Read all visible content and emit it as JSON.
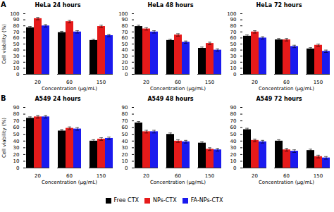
{
  "chart_data": [
    {
      "type": "bar",
      "title": "HeLa 24 hours",
      "annotation": "A",
      "xlabel": "Concentration (μg/mL)",
      "ylabel": "Cell viability (%)",
      "categories": [
        "20",
        "60",
        "150"
      ],
      "series": [
        {
          "name": "Free CTX",
          "color": "#000000",
          "values": [
            77,
            69,
            56
          ],
          "errors": [
            2,
            2,
            2
          ]
        },
        {
          "name": "NPs-CTX",
          "color": "#e61a1a",
          "values": [
            92,
            87,
            79
          ],
          "errors": [
            2,
            2,
            2
          ]
        },
        {
          "name": "FA-NPs-CTX",
          "color": "#1a1aee",
          "values": [
            80,
            70,
            64
          ],
          "errors": [
            2,
            2,
            2
          ]
        }
      ],
      "ylim": [
        0,
        100
      ],
      "yticks": [
        0,
        10,
        20,
        30,
        40,
        50,
        60,
        70,
        80,
        90,
        100
      ],
      "legend": "bottom"
    },
    {
      "type": "bar",
      "title": "HeLa 48 hours",
      "xlabel": "Concentration (μg/mL)",
      "categories": [
        "20",
        "60",
        "150"
      ],
      "series": [
        {
          "name": "Free CTX",
          "color": "#000000",
          "values": [
            79,
            56,
            43
          ],
          "errors": [
            2,
            2,
            2
          ]
        },
        {
          "name": "NPs-CTX",
          "color": "#e61a1a",
          "values": [
            75,
            65,
            51
          ],
          "errors": [
            2,
            2,
            2
          ]
        },
        {
          "name": "FA-NPs-CTX",
          "color": "#1a1aee",
          "values": [
            70,
            53,
            40
          ],
          "errors": [
            2,
            2,
            2
          ]
        }
      ],
      "ylim": [
        0,
        100
      ],
      "yticks": [
        0,
        10,
        20,
        30,
        40,
        50,
        60,
        70,
        80,
        90,
        100
      ],
      "legend": "bottom"
    },
    {
      "type": "bar",
      "title": "HeLa 72 hours",
      "xlabel": "Concentration (μg/mL)",
      "categories": [
        "20",
        "60",
        "150"
      ],
      "series": [
        {
          "name": "Free CTX",
          "color": "#000000",
          "values": [
            63,
            57,
            42
          ],
          "errors": [
            2,
            2,
            2
          ]
        },
        {
          "name": "NPs-CTX",
          "color": "#e61a1a",
          "values": [
            70,
            57,
            48
          ],
          "errors": [
            2,
            2,
            2
          ]
        },
        {
          "name": "FA-NPs-CTX",
          "color": "#1a1aee",
          "values": [
            60,
            46,
            38
          ],
          "errors": [
            2,
            2,
            2
          ]
        }
      ],
      "ylim": [
        0,
        100
      ],
      "yticks": [
        0,
        10,
        20,
        30,
        40,
        50,
        60,
        70,
        80,
        90,
        100
      ],
      "legend": "bottom"
    },
    {
      "type": "bar",
      "title": "A549 24 hours",
      "annotation": "B",
      "xlabel": "Concentration (μg/mL)",
      "ylabel": "Cell viability (%)",
      "categories": [
        "20",
        "60",
        "150"
      ],
      "series": [
        {
          "name": "Free CTX",
          "color": "#000000",
          "values": [
            74,
            55,
            40
          ],
          "errors": [
            2,
            2,
            2
          ]
        },
        {
          "name": "NPs-CTX",
          "color": "#e61a1a",
          "values": [
            76,
            59,
            43
          ],
          "errors": [
            2,
            2,
            2
          ]
        },
        {
          "name": "FA-NPs-CTX",
          "color": "#1a1aee",
          "values": [
            76,
            58,
            44
          ],
          "errors": [
            2,
            2,
            2
          ]
        }
      ],
      "ylim": [
        0,
        90
      ],
      "yticks": [
        0,
        10,
        20,
        30,
        40,
        50,
        60,
        70,
        80,
        90
      ],
      "legend": "bottom"
    },
    {
      "type": "bar",
      "title": "A549 48 hours",
      "xlabel": "Concentration (μg/mL)",
      "categories": [
        "20",
        "60",
        "150"
      ],
      "series": [
        {
          "name": "Free CTX",
          "color": "#000000",
          "values": [
            67,
            50,
            37
          ],
          "errors": [
            2,
            2,
            2
          ]
        },
        {
          "name": "NPs-CTX",
          "color": "#e61a1a",
          "values": [
            54,
            40,
            28
          ],
          "errors": [
            2,
            2,
            2
          ]
        },
        {
          "name": "FA-NPs-CTX",
          "color": "#1a1aee",
          "values": [
            54,
            39,
            27
          ],
          "errors": [
            2,
            2,
            2
          ]
        }
      ],
      "ylim": [
        0,
        90
      ],
      "yticks": [
        0,
        10,
        20,
        30,
        40,
        50,
        60,
        70,
        80,
        90
      ],
      "legend": "bottom"
    },
    {
      "type": "bar",
      "title": "A549 72 hours",
      "xlabel": "Concentration (μg/mL)",
      "categories": [
        "20",
        "60",
        "150"
      ],
      "series": [
        {
          "name": "Free CTX",
          "color": "#000000",
          "values": [
            57,
            40,
            26
          ],
          "errors": [
            2,
            2,
            2
          ]
        },
        {
          "name": "NPs-CTX",
          "color": "#e61a1a",
          "values": [
            41,
            27,
            17
          ],
          "errors": [
            2,
            2,
            2
          ]
        },
        {
          "name": "FA-NPs-CTX",
          "color": "#1a1aee",
          "values": [
            39,
            25,
            15
          ],
          "errors": [
            2,
            2,
            2
          ]
        }
      ],
      "ylim": [
        0,
        90
      ],
      "yticks": [
        0,
        10,
        20,
        30,
        40,
        50,
        60,
        70,
        80,
        90
      ],
      "legend": "bottom"
    }
  ]
}
